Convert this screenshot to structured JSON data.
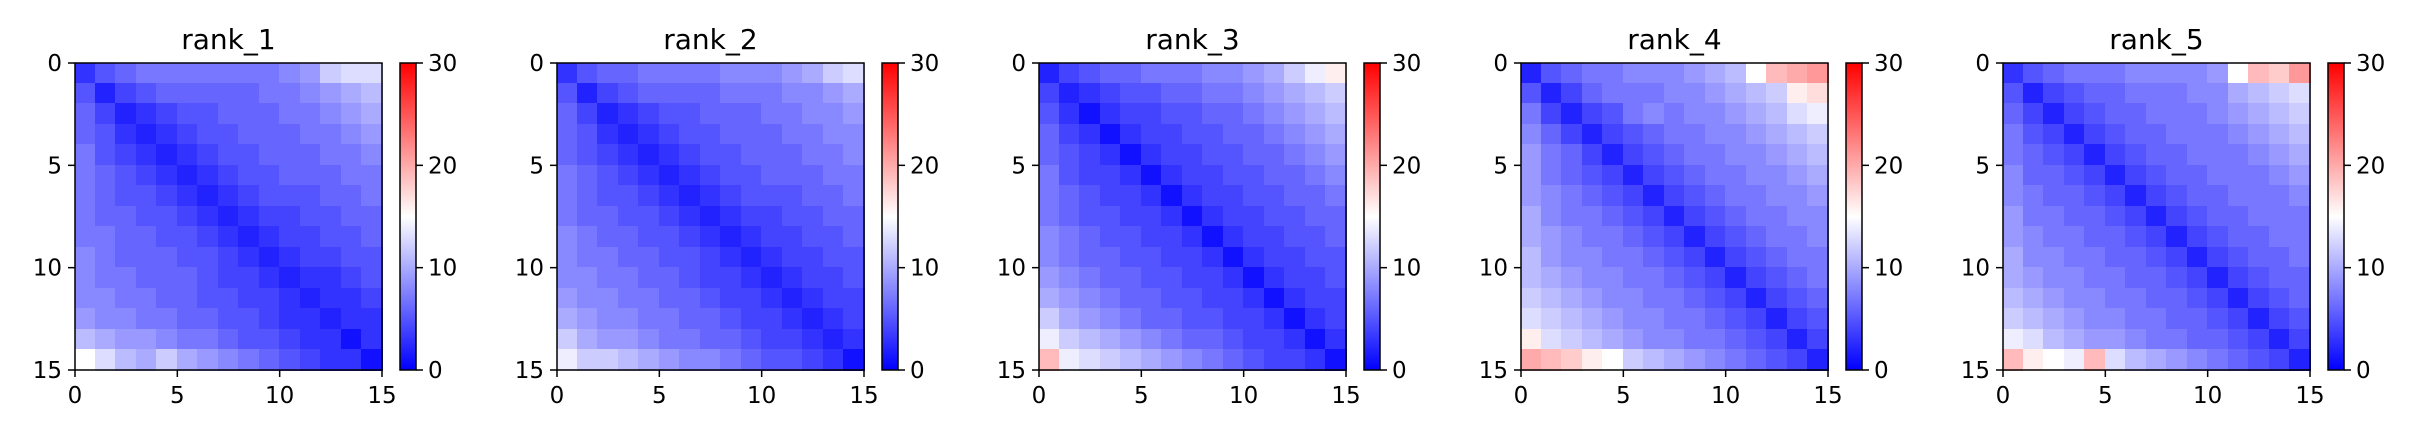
{
  "chart_data": [
    {
      "type": "heatmap",
      "title": "rank_1",
      "grid": false,
      "size": 15,
      "xlim": [
        0,
        15
      ],
      "ylim": [
        15,
        0
      ],
      "xticks": [
        0,
        5,
        10,
        15
      ],
      "yticks": [
        0,
        5,
        10,
        15
      ],
      "colorbar": {
        "range": [
          0,
          30
        ],
        "ticks": [
          0,
          10,
          20,
          30
        ],
        "colormap": "bwr"
      },
      "values": [
        [
          3,
          5,
          6,
          7,
          7,
          7,
          7,
          7,
          7,
          7,
          8,
          9,
          12,
          13,
          13
        ],
        [
          5,
          2,
          4,
          5,
          6,
          6,
          6,
          6,
          6,
          7,
          7,
          8,
          9,
          10,
          11
        ],
        [
          6,
          4,
          2,
          3,
          4,
          5,
          5,
          6,
          6,
          6,
          7,
          7,
          8,
          9,
          10
        ],
        [
          6,
          5,
          3,
          2,
          3,
          4,
          5,
          5,
          6,
          6,
          6,
          7,
          7,
          8,
          9
        ],
        [
          7,
          5,
          4,
          3,
          2,
          3,
          4,
          5,
          5,
          6,
          6,
          6,
          7,
          7,
          8
        ],
        [
          7,
          6,
          5,
          4,
          3,
          2,
          3,
          4,
          5,
          5,
          6,
          6,
          6,
          7,
          7
        ],
        [
          7,
          6,
          5,
          5,
          4,
          3,
          2,
          3,
          4,
          5,
          5,
          5,
          6,
          6,
          7
        ],
        [
          7,
          6,
          6,
          5,
          5,
          4,
          3,
          2,
          3,
          4,
          4,
          5,
          5,
          6,
          6
        ],
        [
          7,
          7,
          6,
          6,
          5,
          5,
          4,
          3,
          2,
          3,
          4,
          4,
          5,
          5,
          6
        ],
        [
          8,
          7,
          6,
          6,
          6,
          5,
          5,
          4,
          3,
          2,
          3,
          4,
          4,
          5,
          5
        ],
        [
          8,
          7,
          7,
          6,
          6,
          6,
          5,
          4,
          4,
          3,
          2,
          3,
          3,
          4,
          5
        ],
        [
          8,
          8,
          7,
          7,
          6,
          6,
          5,
          5,
          4,
          4,
          3,
          2,
          3,
          3,
          4
        ],
        [
          9,
          8,
          8,
          7,
          7,
          6,
          6,
          5,
          5,
          4,
          3,
          3,
          2,
          3,
          3
        ],
        [
          11,
          10,
          9,
          9,
          8,
          7,
          7,
          6,
          5,
          5,
          4,
          3,
          3,
          1,
          3
        ],
        [
          15,
          13,
          11,
          10,
          12,
          10,
          9,
          8,
          7,
          6,
          5,
          4,
          3,
          3,
          1
        ]
      ]
    },
    {
      "type": "heatmap",
      "title": "rank_2",
      "grid": false,
      "size": 15,
      "xlim": [
        0,
        15
      ],
      "ylim": [
        15,
        0
      ],
      "xticks": [
        0,
        5,
        10,
        15
      ],
      "yticks": [
        0,
        5,
        10,
        15
      ],
      "colorbar": {
        "range": [
          0,
          30
        ],
        "ticks": [
          0,
          10,
          20,
          30
        ],
        "colormap": "bwr"
      },
      "values": [
        [
          3,
          5,
          6,
          6,
          7,
          7,
          7,
          7,
          8,
          8,
          8,
          9,
          10,
          12,
          13
        ],
        [
          5,
          2,
          4,
          5,
          6,
          6,
          6,
          6,
          7,
          7,
          7,
          8,
          8,
          9,
          10
        ],
        [
          6,
          4,
          2,
          3,
          4,
          5,
          5,
          6,
          6,
          6,
          7,
          7,
          8,
          8,
          9
        ],
        [
          6,
          5,
          3,
          2,
          3,
          4,
          5,
          5,
          6,
          6,
          6,
          7,
          7,
          8,
          8
        ],
        [
          6,
          5,
          4,
          3,
          2,
          3,
          4,
          5,
          5,
          6,
          6,
          6,
          7,
          7,
          8
        ],
        [
          7,
          6,
          5,
          4,
          3,
          2,
          3,
          4,
          5,
          5,
          6,
          6,
          6,
          7,
          7
        ],
        [
          7,
          6,
          5,
          5,
          4,
          3,
          2,
          3,
          4,
          5,
          5,
          5,
          6,
          6,
          7
        ],
        [
          7,
          6,
          6,
          5,
          5,
          4,
          3,
          2,
          3,
          4,
          4,
          5,
          5,
          6,
          6
        ],
        [
          8,
          7,
          6,
          6,
          5,
          5,
          4,
          3,
          2,
          3,
          4,
          4,
          5,
          5,
          6
        ],
        [
          8,
          7,
          7,
          6,
          6,
          5,
          5,
          4,
          3,
          2,
          3,
          4,
          4,
          5,
          5
        ],
        [
          8,
          8,
          7,
          7,
          6,
          6,
          5,
          4,
          4,
          3,
          2,
          3,
          4,
          4,
          5
        ],
        [
          9,
          8,
          8,
          7,
          7,
          6,
          6,
          5,
          4,
          4,
          3,
          2,
          3,
          4,
          4
        ],
        [
          10,
          9,
          8,
          8,
          7,
          7,
          6,
          6,
          5,
          4,
          4,
          3,
          2,
          3,
          4
        ],
        [
          12,
          10,
          9,
          9,
          8,
          7,
          7,
          6,
          6,
          5,
          4,
          4,
          3,
          2,
          3
        ],
        [
          14,
          12,
          12,
          11,
          10,
          9,
          8,
          8,
          7,
          6,
          5,
          5,
          4,
          3,
          1
        ]
      ]
    },
    {
      "type": "heatmap",
      "title": "rank_3",
      "grid": false,
      "size": 15,
      "xlim": [
        0,
        15
      ],
      "ylim": [
        15,
        0
      ],
      "xticks": [
        0,
        5,
        10,
        15
      ],
      "yticks": [
        0,
        5,
        10,
        15
      ],
      "colorbar": {
        "range": [
          0,
          30
        ],
        "ticks": [
          0,
          10,
          20,
          30
        ],
        "colormap": "bwr"
      },
      "values": [
        [
          2,
          4,
          5,
          6,
          6,
          7,
          7,
          7,
          8,
          8,
          9,
          10,
          12,
          14,
          16
        ],
        [
          4,
          2,
          3,
          4,
          5,
          5,
          6,
          6,
          7,
          7,
          8,
          9,
          10,
          11,
          12
        ],
        [
          5,
          3,
          1,
          3,
          4,
          4,
          5,
          5,
          6,
          6,
          7,
          8,
          9,
          10,
          11
        ],
        [
          6,
          4,
          3,
          1,
          3,
          4,
          4,
          5,
          5,
          6,
          6,
          7,
          8,
          9,
          10
        ],
        [
          6,
          5,
          4,
          3,
          1,
          3,
          4,
          4,
          5,
          5,
          6,
          6,
          7,
          8,
          9
        ],
        [
          7,
          5,
          4,
          4,
          3,
          1,
          3,
          4,
          4,
          5,
          5,
          6,
          6,
          7,
          8
        ],
        [
          7,
          6,
          5,
          4,
          4,
          3,
          1,
          3,
          4,
          4,
          5,
          5,
          6,
          6,
          7
        ],
        [
          7,
          6,
          5,
          5,
          4,
          4,
          3,
          1,
          3,
          4,
          4,
          5,
          5,
          6,
          6
        ],
        [
          8,
          7,
          6,
          5,
          5,
          4,
          4,
          3,
          1,
          3,
          4,
          4,
          5,
          5,
          6
        ],
        [
          8,
          7,
          6,
          6,
          5,
          5,
          4,
          4,
          3,
          1,
          3,
          4,
          4,
          5,
          5
        ],
        [
          9,
          8,
          7,
          6,
          6,
          5,
          5,
          4,
          4,
          3,
          1,
          3,
          4,
          4,
          5
        ],
        [
          10,
          9,
          8,
          7,
          6,
          6,
          5,
          5,
          4,
          4,
          3,
          1,
          3,
          4,
          4
        ],
        [
          12,
          10,
          9,
          8,
          7,
          6,
          6,
          5,
          5,
          4,
          4,
          3,
          1,
          3,
          4
        ],
        [
          14,
          12,
          11,
          10,
          9,
          8,
          7,
          6,
          6,
          5,
          4,
          4,
          3,
          1,
          3
        ],
        [
          19,
          14,
          13,
          12,
          11,
          10,
          9,
          8,
          7,
          6,
          5,
          4,
          4,
          3,
          1
        ]
      ]
    },
    {
      "type": "heatmap",
      "title": "rank_4",
      "grid": false,
      "size": 15,
      "xlim": [
        0,
        15
      ],
      "ylim": [
        15,
        0
      ],
      "xticks": [
        0,
        5,
        10,
        15
      ],
      "yticks": [
        0,
        5,
        10,
        15
      ],
      "colorbar": {
        "range": [
          0,
          30
        ],
        "ticks": [
          0,
          10,
          20,
          30
        ],
        "colormap": "bwr"
      },
      "values": [
        [
          2,
          5,
          6,
          7,
          7,
          8,
          8,
          8,
          9,
          10,
          11,
          15,
          19,
          20,
          21
        ],
        [
          5,
          2,
          4,
          6,
          7,
          7,
          7,
          8,
          8,
          9,
          10,
          11,
          12,
          16,
          17
        ],
        [
          7,
          4,
          2,
          4,
          5,
          7,
          8,
          7,
          8,
          8,
          9,
          10,
          11,
          13,
          14
        ],
        [
          8,
          6,
          4,
          2,
          4,
          5,
          6,
          7,
          7,
          8,
          8,
          9,
          10,
          11,
          12
        ],
        [
          9,
          7,
          6,
          4,
          2,
          4,
          5,
          6,
          7,
          7,
          8,
          8,
          9,
          10,
          11
        ],
        [
          9,
          7,
          6,
          5,
          4,
          2,
          4,
          5,
          6,
          7,
          7,
          8,
          8,
          9,
          10
        ],
        [
          9,
          8,
          7,
          6,
          5,
          4,
          2,
          4,
          5,
          6,
          7,
          7,
          8,
          8,
          9
        ],
        [
          10,
          8,
          7,
          7,
          6,
          5,
          4,
          2,
          4,
          5,
          6,
          7,
          7,
          8,
          8
        ],
        [
          10,
          9,
          8,
          7,
          7,
          6,
          5,
          4,
          2,
          4,
          5,
          6,
          7,
          7,
          8
        ],
        [
          11,
          9,
          8,
          8,
          7,
          7,
          6,
          5,
          4,
          2,
          4,
          5,
          6,
          7,
          7
        ],
        [
          11,
          10,
          9,
          8,
          8,
          7,
          7,
          6,
          5,
          4,
          2,
          4,
          5,
          6,
          7
        ],
        [
          12,
          11,
          10,
          9,
          8,
          8,
          7,
          7,
          6,
          5,
          4,
          2,
          4,
          5,
          6
        ],
        [
          13,
          12,
          11,
          10,
          9,
          8,
          8,
          7,
          7,
          6,
          5,
          4,
          2,
          4,
          5
        ],
        [
          16,
          13,
          12,
          11,
          10,
          9,
          8,
          8,
          7,
          7,
          6,
          5,
          4,
          2,
          4
        ],
        [
          20,
          19,
          18,
          16,
          15,
          12,
          11,
          10,
          9,
          8,
          7,
          6,
          5,
          4,
          2
        ]
      ]
    },
    {
      "type": "heatmap",
      "title": "rank_5",
      "grid": false,
      "size": 15,
      "xlim": [
        0,
        15
      ],
      "ylim": [
        15,
        0
      ],
      "xticks": [
        0,
        5,
        10,
        15
      ],
      "yticks": [
        0,
        5,
        10,
        15
      ],
      "colorbar": {
        "range": [
          0,
          30
        ],
        "ticks": [
          0,
          10,
          20,
          30
        ],
        "colormap": "bwr"
      },
      "values": [
        [
          3,
          5,
          6,
          7,
          7,
          7,
          8,
          8,
          8,
          8,
          9,
          15,
          19,
          18,
          21
        ],
        [
          5,
          2,
          4,
          5,
          6,
          6,
          7,
          7,
          7,
          8,
          8,
          10,
          11,
          12,
          13
        ],
        [
          6,
          4,
          2,
          4,
          5,
          6,
          6,
          7,
          7,
          7,
          8,
          9,
          10,
          11,
          12
        ],
        [
          7,
          5,
          4,
          2,
          4,
          5,
          6,
          6,
          7,
          7,
          7,
          8,
          9,
          10,
          11
        ],
        [
          7,
          6,
          5,
          4,
          2,
          4,
          5,
          6,
          6,
          7,
          7,
          7,
          8,
          9,
          10
        ],
        [
          8,
          6,
          6,
          5,
          4,
          2,
          4,
          5,
          6,
          6,
          7,
          7,
          7,
          8,
          9
        ],
        [
          8,
          7,
          6,
          6,
          5,
          4,
          2,
          4,
          5,
          6,
          6,
          7,
          7,
          7,
          8
        ],
        [
          9,
          7,
          7,
          6,
          6,
          5,
          4,
          2,
          4,
          5,
          6,
          6,
          7,
          7,
          7
        ],
        [
          9,
          8,
          7,
          7,
          6,
          6,
          5,
          4,
          2,
          4,
          5,
          6,
          6,
          7,
          7
        ],
        [
          10,
          8,
          8,
          7,
          7,
          6,
          6,
          5,
          4,
          2,
          4,
          5,
          6,
          6,
          7
        ],
        [
          10,
          9,
          8,
          8,
          7,
          7,
          6,
          6,
          5,
          4,
          2,
          4,
          5,
          6,
          6
        ],
        [
          11,
          10,
          9,
          8,
          8,
          7,
          7,
          6,
          6,
          5,
          4,
          2,
          4,
          5,
          6
        ],
        [
          12,
          11,
          10,
          9,
          8,
          8,
          7,
          7,
          6,
          6,
          5,
          4,
          2,
          4,
          5
        ],
        [
          14,
          13,
          11,
          10,
          9,
          9,
          8,
          7,
          7,
          6,
          6,
          5,
          4,
          2,
          4
        ],
        [
          19,
          16,
          15,
          14,
          19,
          13,
          11,
          10,
          9,
          8,
          7,
          6,
          5,
          4,
          2
        ]
      ]
    }
  ]
}
